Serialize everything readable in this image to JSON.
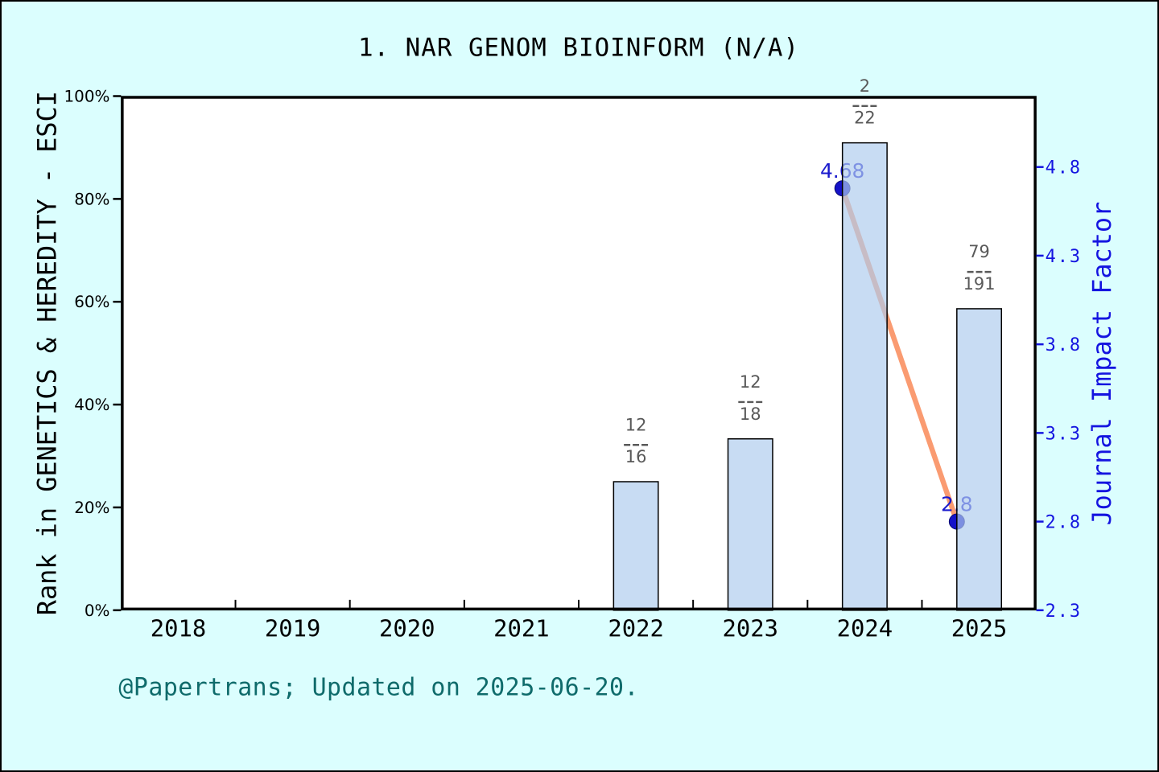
{
  "title": "1. NAR GENOM BIOINFORM (N/A)",
  "footer": "@Papertrans; Updated on 2025-06-20.",
  "left_axis": {
    "label": "Rank in GENETICS & HEREDITY - ESCI"
  },
  "right_axis": {
    "label": "Journal Impact Factor"
  },
  "chart_data": {
    "type": "bar",
    "title": "1. NAR GENOM BIOINFORM (N/A)",
    "categories": [
      2018,
      2019,
      2020,
      2021,
      2022,
      2023,
      2024,
      2025
    ],
    "series": [
      {
        "name": "Rank in GENETICS & HEREDITY - ESCI",
        "type": "bar",
        "axis": "left",
        "unit": "%",
        "values": [
          null,
          null,
          null,
          null,
          25.0,
          33.33,
          90.91,
          58.64
        ],
        "fraction_labels": [
          null,
          null,
          null,
          null,
          {
            "num": "12",
            "den": "16"
          },
          {
            "num": "12",
            "den": "18"
          },
          {
            "num": "2",
            "den": "22"
          },
          {
            "num": "79",
            "den": "191"
          }
        ]
      },
      {
        "name": "Journal Impact Factor",
        "type": "line",
        "axis": "right",
        "values": [
          null,
          null,
          null,
          null,
          null,
          null,
          4.68,
          2.8
        ],
        "point_labels": [
          null,
          null,
          null,
          null,
          null,
          null,
          "4.68",
          "2.8"
        ]
      }
    ],
    "left_ticks": [
      0,
      20,
      40,
      60,
      80,
      100
    ],
    "left_tick_labels": [
      "0%",
      "20%",
      "40%",
      "60%",
      "80%",
      "100%"
    ],
    "right_ticks": [
      2.3,
      2.8,
      3.3,
      3.8,
      4.3,
      4.8
    ],
    "right_tick_labels": [
      "2.3",
      "2.8",
      "3.3",
      "3.8",
      "4.3",
      "4.8"
    ],
    "left_ylim": [
      0,
      100
    ],
    "right_ylim": [
      2.3,
      5.2
    ],
    "x_domain": [
      2017.5,
      2025.5
    ],
    "grid": false,
    "legend": "none"
  },
  "colors": {
    "background": "#DBFEFE",
    "plot_background": "#FFFFFF",
    "axis_frame": "#000000",
    "bar_fill": "#AECCEE",
    "bar_fill_opacity": 0.68,
    "bar_border": "#000000",
    "line": "#FA9B71",
    "marker": "#1512C8",
    "value_label": "#1A1ACD",
    "right_axis_text": "#1414E0",
    "fraction_text": "#595959",
    "footer_text": "#0F6B6B",
    "axis_text": "#000000"
  }
}
